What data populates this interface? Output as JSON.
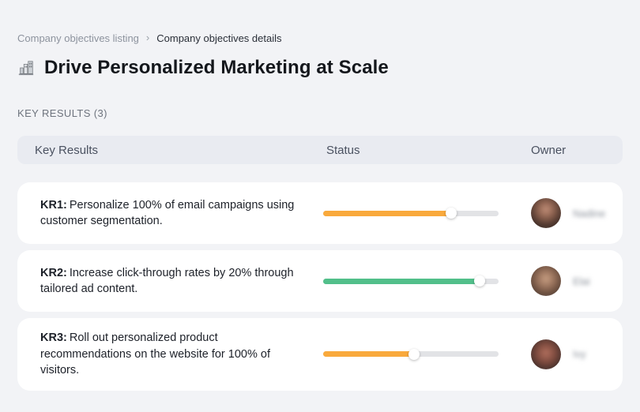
{
  "breadcrumb": {
    "separator": "›",
    "items": [
      {
        "label": "Company objectives listing"
      },
      {
        "label": "Company objectives details"
      }
    ]
  },
  "page": {
    "title": "Drive Personalized Marketing at Scale",
    "title_icon": "buildings-chart-icon",
    "section_label": "KEY RESULTS (3)"
  },
  "table": {
    "columns": {
      "key_results": "Key Results",
      "status": "Status",
      "owner": "Owner"
    },
    "rows": [
      {
        "id": "KR1:",
        "description": "Personalize 100% of email campaigns using customer segmentation.",
        "progress_percent": 73,
        "progress_color": "#F9A93C",
        "owner": {
          "name": "Nadine",
          "blurred": true
        }
      },
      {
        "id": "KR2:",
        "description": "Increase click-through rates by 20% through tailored ad content.",
        "progress_percent": 89,
        "progress_color": "#52BF8A",
        "owner": {
          "name": "Elai",
          "blurred": true
        }
      },
      {
        "id": "KR3:",
        "description": "Roll out personalized product recommendations on the website for 100% of visitors.",
        "progress_percent": 52,
        "progress_color": "#F9A93C",
        "owner": {
          "name": "Ivy",
          "blurred": true
        }
      }
    ]
  },
  "colors": {
    "page_bg": "#F2F3F6",
    "table_header_bg": "#E9EBF1",
    "card_bg": "#FFFFFF",
    "progress_track": "#E2E3E6",
    "progress_orange": "#F9A93C",
    "progress_green": "#52BF8A",
    "text_dark": "#14171C",
    "text_gray": "#8D939E"
  }
}
